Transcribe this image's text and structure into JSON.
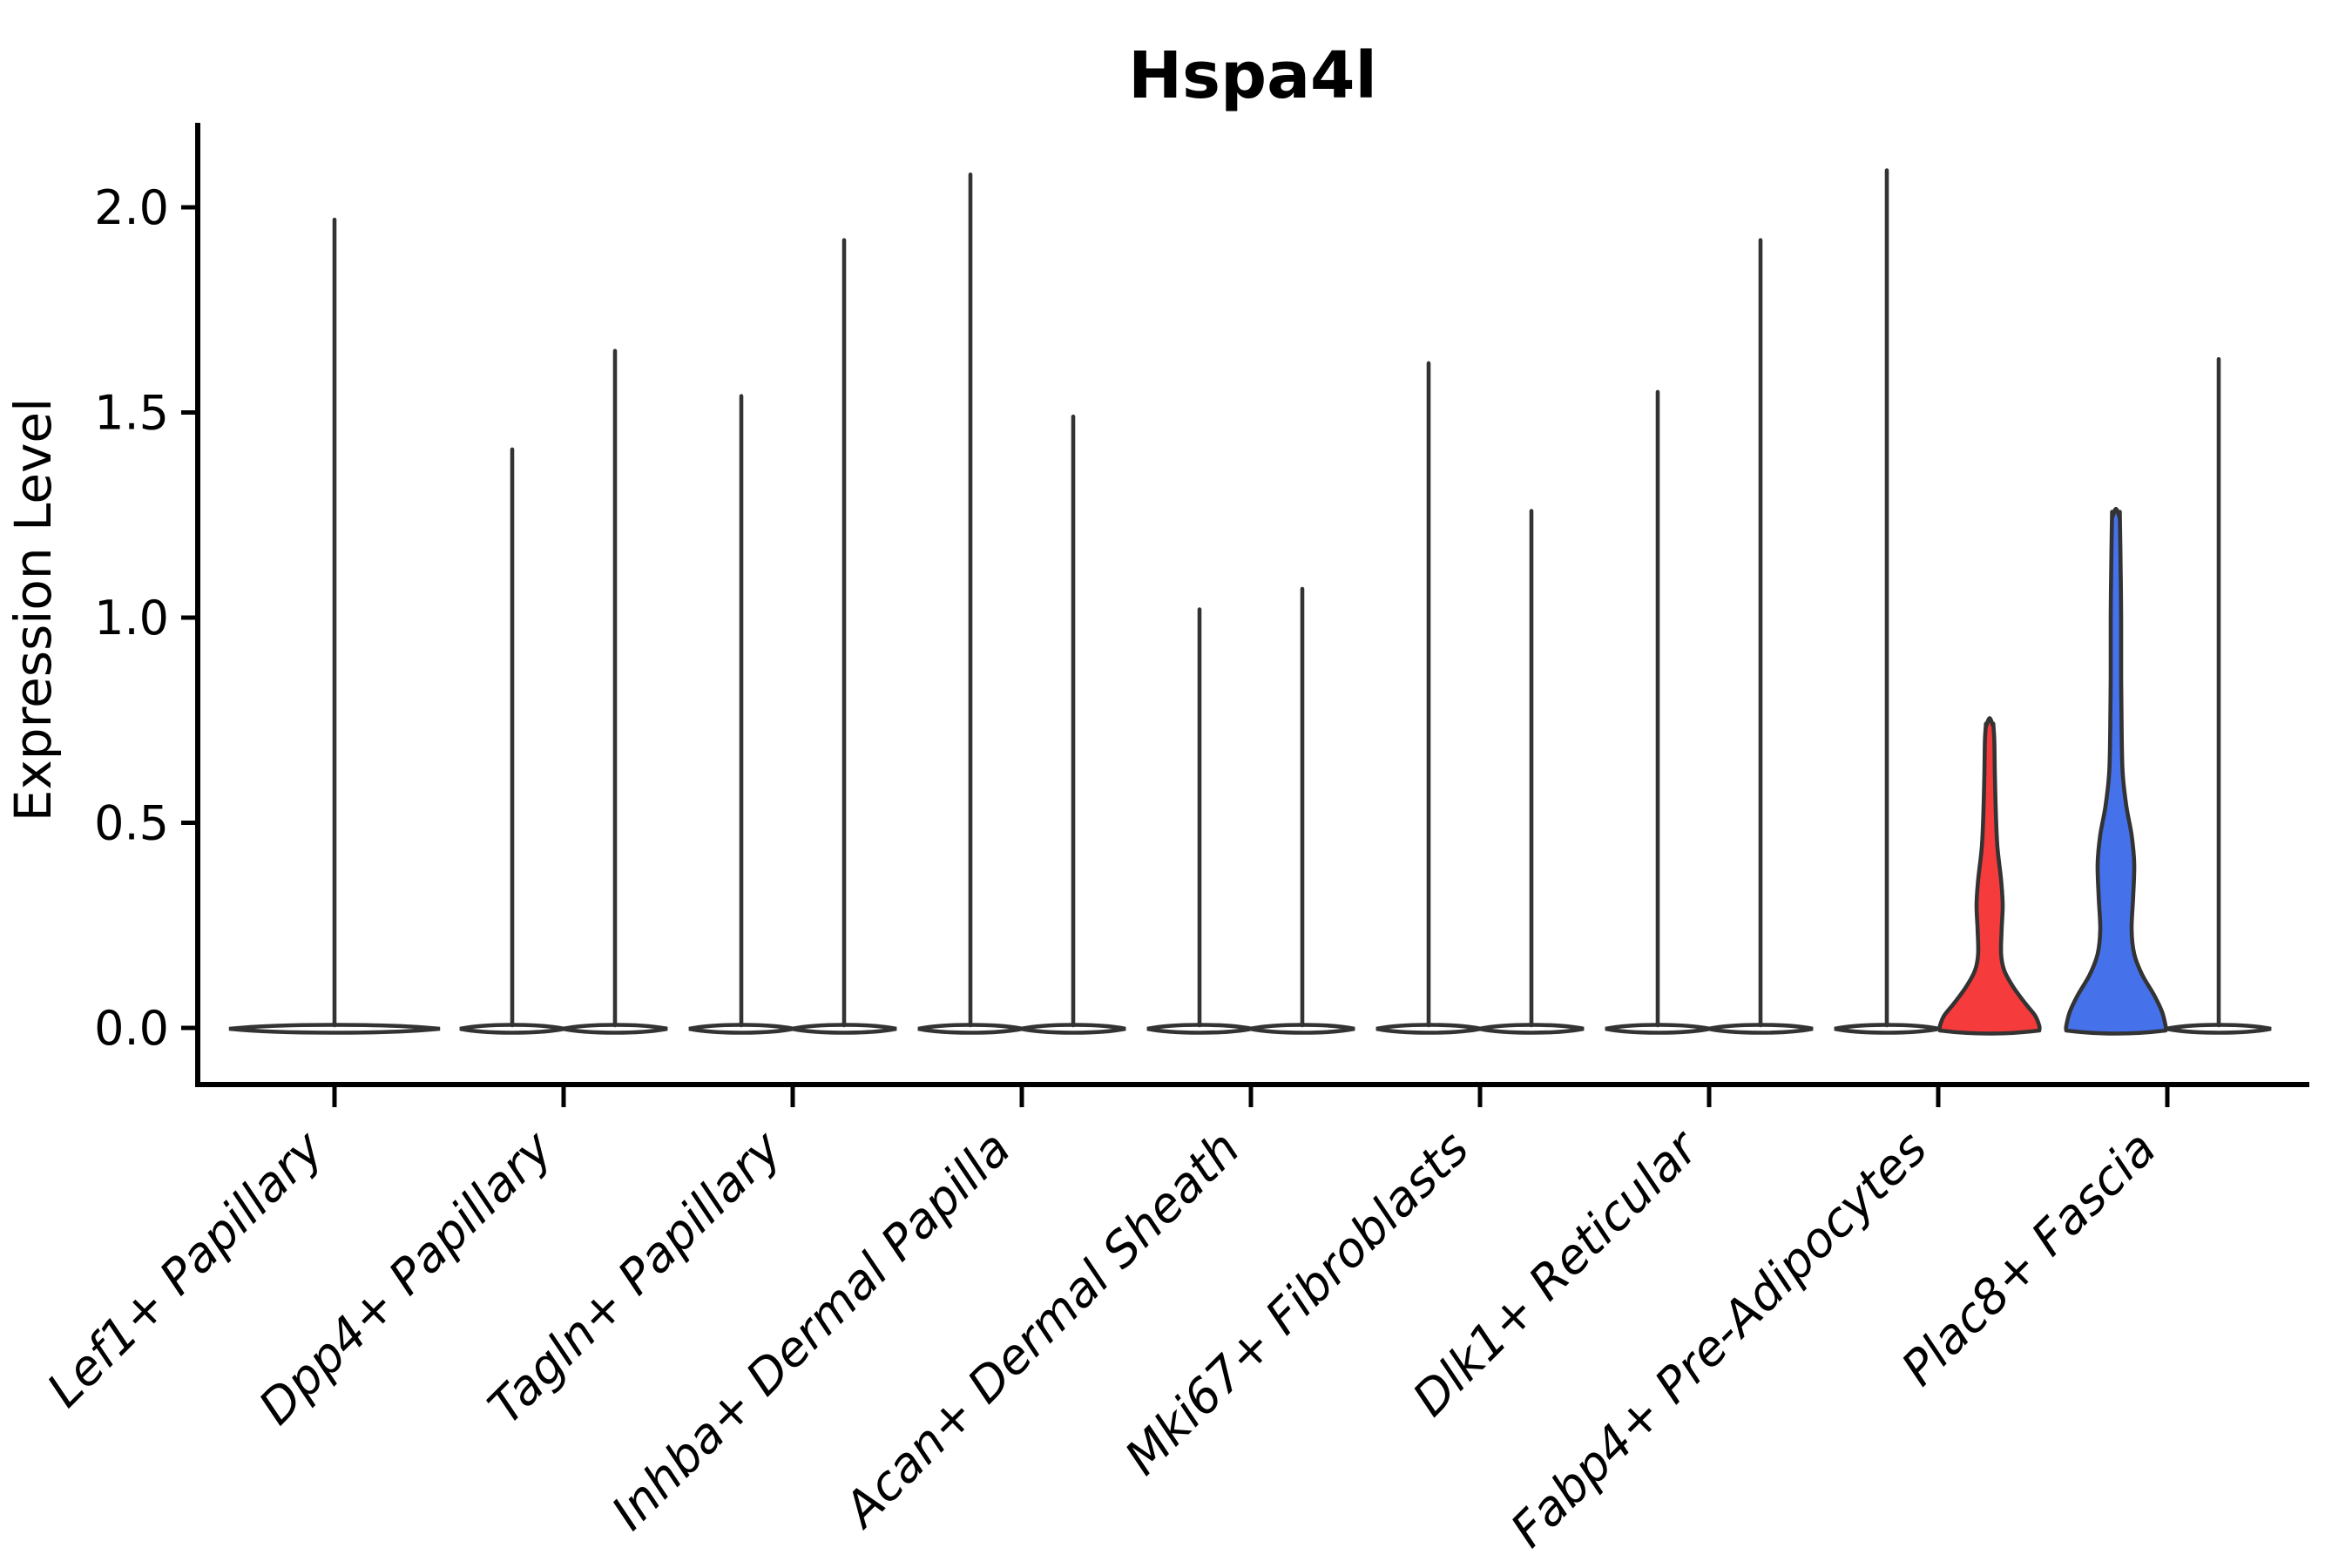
{
  "chart_data": {
    "type": "violin",
    "title": "Hspa4l",
    "ylabel": "Expression Level",
    "xlabel": "",
    "ytick_labels": [
      "0.0",
      "0.5",
      "1.0",
      "1.5",
      "2.0"
    ],
    "ytick_values": [
      0.0,
      0.5,
      1.0,
      1.5,
      2.0
    ],
    "ylim": [
      -0.14,
      2.21
    ],
    "grid": false,
    "legend": null,
    "categories": [
      "Lef1+ Papillary",
      "Dpp4+ Papillary",
      "Tagln+ Papillary",
      "Inhba+ Dermal Papilla",
      "Acan+ Dermal Sheath",
      "Mki67+ Fibroblasts",
      "Dlk1+ Reticular",
      "Fabp4+ Pre-Adipocytes",
      "Plac8+ Fascia"
    ],
    "colors": {
      "outline": "#333333",
      "axis": "#000000",
      "default_fill": "#ffffff",
      "highlight_red": "#f53b3b",
      "highlight_blue": "#4571ea"
    },
    "violins": [
      {
        "category_index": 0,
        "position": "center",
        "span": "full",
        "max": 1.97,
        "fill": "default"
      },
      {
        "category_index": 1,
        "position": "left",
        "span": "half",
        "max": 1.41,
        "fill": "default"
      },
      {
        "category_index": 1,
        "position": "right",
        "span": "half",
        "max": 1.65,
        "fill": "default"
      },
      {
        "category_index": 2,
        "position": "left",
        "span": "half",
        "max": 1.54,
        "fill": "default"
      },
      {
        "category_index": 2,
        "position": "right",
        "span": "half",
        "max": 1.92,
        "fill": "default"
      },
      {
        "category_index": 3,
        "position": "left",
        "span": "half",
        "max": 2.08,
        "fill": "default"
      },
      {
        "category_index": 3,
        "position": "right",
        "span": "half",
        "max": 1.49,
        "fill": "default"
      },
      {
        "category_index": 4,
        "position": "left",
        "span": "half",
        "max": 1.02,
        "fill": "default"
      },
      {
        "category_index": 4,
        "position": "right",
        "span": "half",
        "max": 1.07,
        "fill": "default"
      },
      {
        "category_index": 5,
        "position": "left",
        "span": "half",
        "max": 1.62,
        "fill": "default"
      },
      {
        "category_index": 5,
        "position": "right",
        "span": "half",
        "max": 1.26,
        "fill": "default"
      },
      {
        "category_index": 6,
        "position": "left",
        "span": "half",
        "max": 1.55,
        "fill": "default"
      },
      {
        "category_index": 6,
        "position": "right",
        "span": "half",
        "max": 1.92,
        "fill": "default"
      },
      {
        "category_index": 7,
        "position": "left",
        "span": "half",
        "max": 2.09,
        "fill": "default"
      },
      {
        "category_index": 7,
        "position": "right",
        "span": "half",
        "max": 0.74,
        "fill": "red",
        "profile": [
          [
            0.005,
            0.95
          ],
          [
            0.03,
            0.87
          ],
          [
            0.06,
            0.68
          ],
          [
            0.1,
            0.45
          ],
          [
            0.14,
            0.28
          ],
          [
            0.18,
            0.22
          ],
          [
            0.24,
            0.23
          ],
          [
            0.3,
            0.25
          ],
          [
            0.36,
            0.22
          ],
          [
            0.44,
            0.15
          ],
          [
            0.52,
            0.12
          ],
          [
            0.62,
            0.1
          ],
          [
            0.7,
            0.09
          ],
          [
            0.74,
            0.07
          ]
        ]
      },
      {
        "category_index": 8,
        "position": "left",
        "span": "half",
        "max": 1.25,
        "fill": "blue",
        "profile": [
          [
            0.005,
            0.95
          ],
          [
            0.04,
            0.88
          ],
          [
            0.08,
            0.73
          ],
          [
            0.13,
            0.5
          ],
          [
            0.18,
            0.35
          ],
          [
            0.24,
            0.3
          ],
          [
            0.32,
            0.33
          ],
          [
            0.4,
            0.35
          ],
          [
            0.47,
            0.3
          ],
          [
            0.54,
            0.2
          ],
          [
            0.62,
            0.13
          ],
          [
            0.72,
            0.11
          ],
          [
            0.85,
            0.1
          ],
          [
            1.0,
            0.1
          ],
          [
            1.12,
            0.09
          ],
          [
            1.25,
            0.075
          ]
        ]
      },
      {
        "category_index": 8,
        "position": "right",
        "span": "half",
        "max": 1.63,
        "fill": "default"
      }
    ]
  }
}
